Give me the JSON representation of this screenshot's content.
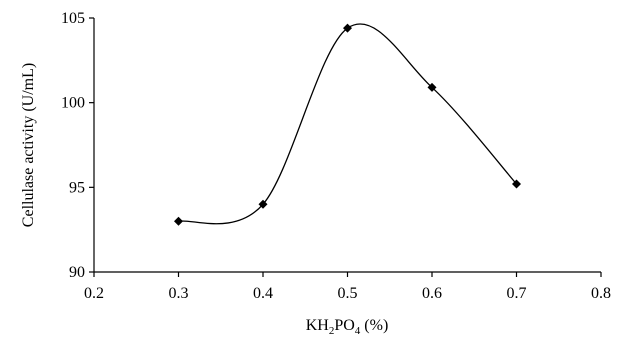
{
  "chart_data": {
    "type": "scatter",
    "title": "",
    "ylabel": "Cellulase activity (U/mL)",
    "xlabel": {
      "parts": [
        {
          "text": "KH",
          "sub": false
        },
        {
          "text": "2",
          "sub": true
        },
        {
          "text": "PO",
          "sub": false
        },
        {
          "text": "4",
          "sub": true
        },
        {
          "text": " (%)",
          "sub": false
        }
      ]
    },
    "xlim": [
      0.2,
      0.8
    ],
    "ylim": [
      90,
      105
    ],
    "xticks": [
      0.2,
      0.3,
      0.4,
      0.5,
      0.6,
      0.7,
      0.8
    ],
    "xtick_labels": [
      "0.2",
      "0.3",
      "0.4",
      "0.5",
      "0.6",
      "0.7",
      "0.8"
    ],
    "yticks": [
      90,
      95,
      100,
      105
    ],
    "ytick_labels": [
      "90",
      "95",
      "100",
      "105"
    ],
    "grid": false,
    "series": [
      {
        "x": [
          0.3,
          0.4,
          0.5,
          0.6,
          0.7
        ],
        "y": [
          93.0,
          94.0,
          104.4,
          100.9,
          95.2
        ],
        "marker": "diamond",
        "line": "smooth",
        "color": "#000000"
      }
    ]
  }
}
